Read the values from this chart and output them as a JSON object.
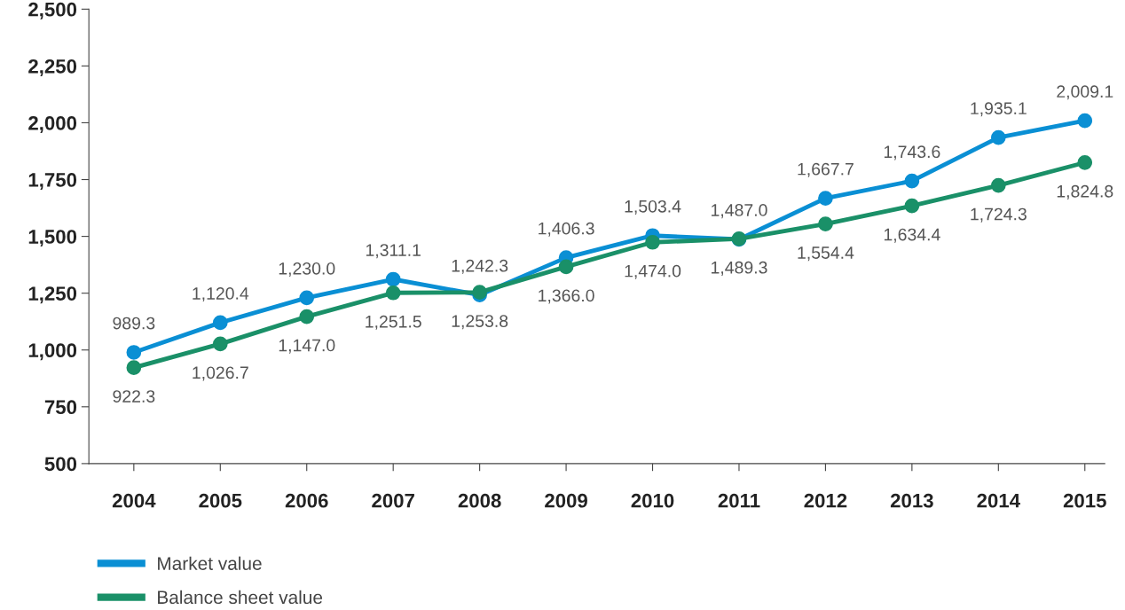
{
  "chart_data": {
    "type": "line",
    "categories": [
      "2004",
      "2005",
      "2006",
      "2007",
      "2008",
      "2009",
      "2010",
      "2011",
      "2012",
      "2013",
      "2014",
      "2015"
    ],
    "series": [
      {
        "name": "Market value",
        "color": "#0a8fd4",
        "values": [
          989.3,
          1120.4,
          1230.0,
          1311.1,
          1242.3,
          1406.3,
          1503.4,
          1487.0,
          1667.7,
          1743.6,
          1935.1,
          2009.1
        ],
        "value_labels": [
          "989.3",
          "1,120.4",
          "1,230.0",
          "1,311.1",
          "1,242.3",
          "1,406.3",
          "1,503.4",
          "1,487.0",
          "1,667.7",
          "1,743.6",
          "1,935.1",
          "2,009.1"
        ]
      },
      {
        "name": "Balance sheet value",
        "color": "#1a9068",
        "values": [
          922.3,
          1026.7,
          1147.0,
          1251.5,
          1253.8,
          1366.0,
          1474.0,
          1489.3,
          1554.4,
          1634.4,
          1724.3,
          1824.8
        ],
        "value_labels": [
          "922.3",
          "1,026.7",
          "1,147.0",
          "1,251.5",
          "1,253.8",
          "1,366.0",
          "1,474.0",
          "1,489.3",
          "1,554.4",
          "1,634.4",
          "1,724.3",
          "1,824.8"
        ]
      }
    ],
    "ylim": [
      500,
      2500
    ],
    "yticks": [
      500,
      750,
      {
        "value": 1000,
        "label": "1,000"
      },
      {
        "value": 1250,
        "label": "1,250"
      },
      {
        "value": 1500,
        "label": "1,500"
      },
      {
        "value": 1750,
        "label": "1,750"
      },
      {
        "value": 2000,
        "label": "2,000"
      },
      {
        "value": 2250,
        "label": "2,250"
      },
      {
        "value": 2500,
        "label": "2,500"
      }
    ],
    "marker": "circle",
    "line_style": "solid",
    "grid": false,
    "legend": "bottom left"
  }
}
